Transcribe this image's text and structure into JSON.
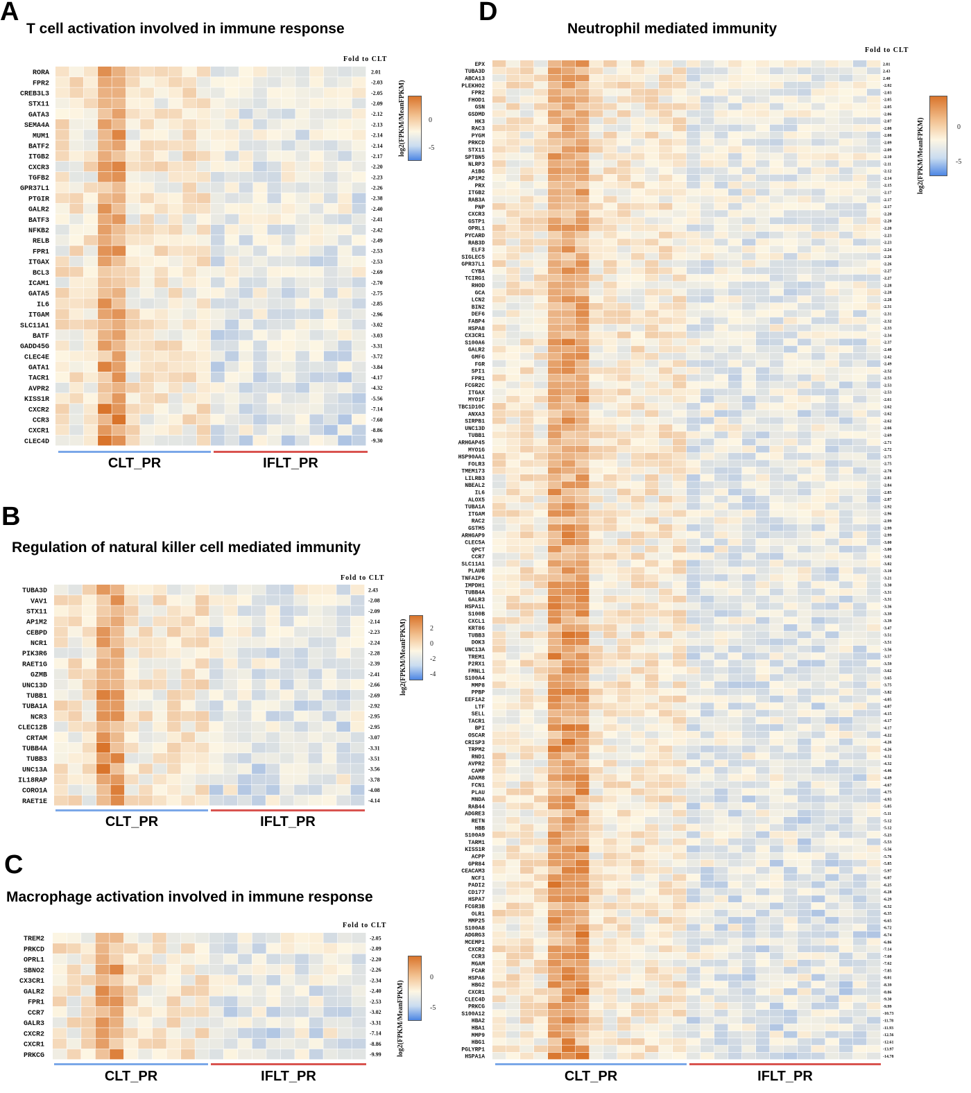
{
  "colors": {
    "high": "#d9742b",
    "mid": "#fdf6e3",
    "low": "#4d86e4",
    "clt_line": "#7aa7e8",
    "iflt_line": "#d9534f"
  },
  "fold_header": "Fold to CLT",
  "legend_title": "log2(FPKM/MeanFPKM)",
  "group_labels": [
    "CLT_PR",
    "IFLT_PR"
  ],
  "chart_data": [
    {
      "type": "heatmap",
      "panel": "A",
      "title": "T cell activation involved in immune response",
      "columns_per_group": [
        11,
        11
      ],
      "rows": [
        "RORA",
        "FPR2",
        "CREB3L3",
        "STX11",
        "GATA3",
        "SEMA4A",
        "MUM1",
        "BATF2",
        "ITGB2",
        "CXCR3",
        "TGFB2",
        "GPR37L1",
        "PTGIR",
        "GALR2",
        "BATF3",
        "NFKB2",
        "RELB",
        "FPR1",
        "ITGAX",
        "BCL3",
        "ICAM1",
        "GATA5",
        "IL6",
        "ITGAM",
        "SLC11A1",
        "BATF",
        "GADD45G",
        "CLEC4E",
        "GATA1",
        "TACR1",
        "AVPR2",
        "KISS1R",
        "CXCR2",
        "CCR3",
        "CXCR1",
        "CLEC4D"
      ],
      "fold": [
        "2.01",
        "-2.03",
        "-2.05",
        "-2.09",
        "-2.12",
        "-2.13",
        "-2.14",
        "-2.14",
        "-2.17",
        "-2.20",
        "-2.23",
        "-2.26",
        "-2.38",
        "-2.40",
        "-2.41",
        "-2.42",
        "-2.49",
        "-2.53",
        "-2.53",
        "-2.69",
        "-2.70",
        "-2.75",
        "-2.85",
        "-2.96",
        "-3.02",
        "-3.03",
        "-3.31",
        "-3.72",
        "-3.84",
        "-4.17",
        "-4.32",
        "-5.56",
        "-7.14",
        "-7.60",
        "-8.86",
        "-9.30"
      ],
      "legend_ticks": [
        "0",
        "-5"
      ]
    },
    {
      "type": "heatmap",
      "panel": "B",
      "title": "Regulation of natural killer cell mediated immunity",
      "columns_per_group": [
        11,
        11
      ],
      "rows": [
        "TUBA3D",
        "VAV1",
        "STX11",
        "AP1M2",
        "CEBPD",
        "NCR1",
        "PIK3R6",
        "RAET1G",
        "GZMB",
        "UNC13D",
        "TUBB1",
        "TUBA1A",
        "NCR3",
        "CLEC12B",
        "CRTAM",
        "TUBB4A",
        "TUBB3",
        "UNC13A",
        "IL18RAP",
        "CORO1A",
        "RAET1E"
      ],
      "fold": [
        "2.43",
        "-2.08",
        "-2.09",
        "-2.14",
        "-2.23",
        "-2.24",
        "-2.28",
        "-2.39",
        "-2.41",
        "-2.66",
        "-2.69",
        "-2.92",
        "-2.95",
        "-2.95",
        "-3.07",
        "-3.31",
        "-3.51",
        "-3.56",
        "-3.78",
        "-4.08",
        "-4.14"
      ],
      "legend_ticks": [
        "2",
        "0",
        "-2",
        "-4"
      ]
    },
    {
      "type": "heatmap",
      "panel": "C",
      "title": "Macrophage activation involved in immune response",
      "columns_per_group": [
        11,
        11
      ],
      "rows": [
        "TREM2",
        "PRKCD",
        "OPRL1",
        "SBNO2",
        "CX3CR1",
        "GALR2",
        "FPR1",
        "CCR7",
        "GALR3",
        "CXCR2",
        "CXCR1",
        "PRKCG"
      ],
      "fold": [
        "-2.05",
        "-2.09",
        "-2.20",
        "-2.26",
        "-2.34",
        "-2.40",
        "-2.53",
        "-3.02",
        "-3.31",
        "-7.14",
        "-8.86",
        "-9.99"
      ],
      "legend_ticks": [
        "0",
        "-5"
      ]
    },
    {
      "type": "heatmap",
      "panel": "D",
      "title": "Neutrophil mediated immunity",
      "columns_per_group": [
        14,
        14
      ],
      "rows": [
        "EPX",
        "TUBA3D",
        "ABCA13",
        "PLEKHO2",
        "FPR2",
        "FHOD1",
        "GSN",
        "GSDMD",
        "HK3",
        "RAC3",
        "PYGM",
        "PRKCD",
        "STX11",
        "SPTBN5",
        "NLRP3",
        "A1BG",
        "AP1M2",
        "PRX",
        "ITGB2",
        "RAB3A",
        "PNP",
        "CXCR3",
        "GSTP1",
        "OPRL1",
        "PYCARD",
        "RAB3D",
        "ELF3",
        "SIGLEC5",
        "GPR37L1",
        "CYBA",
        "TCIRG1",
        "RHOD",
        "GCA",
        "LCN2",
        "BIN2",
        "DEF6",
        "FABP4",
        "HSPA8",
        "CX3CR1",
        "S100A6",
        "GALR2",
        "GMFG",
        "FGR",
        "SPI1",
        "FPR1",
        "FCGR2C",
        "ITGAX",
        "MYO1F",
        "TBC1D10C",
        "ANXA3",
        "SIRPB1",
        "UNC13D",
        "TUBB1",
        "ARHGAP45",
        "MYO1G",
        "HSP90AA1",
        "FOLR3",
        "TMEM173",
        "LILRB3",
        "NBEAL2",
        "IL6",
        "ALOX5",
        "TUBA1A",
        "ITGAM",
        "RAC2",
        "GSTM5",
        "ARHGAP9",
        "CLEC5A",
        "QPCT",
        "CCR7",
        "SLC11A1",
        "PLAUR",
        "TNFAIP6",
        "IMPDH1",
        "TUBB4A",
        "GALR3",
        "HSPA1L",
        "S100B",
        "CXCL1",
        "KRT86",
        "TUBB3",
        "DOK3",
        "UNC13A",
        "TREM1",
        "P2RX1",
        "FMNL1",
        "S100A4",
        "MMP8",
        "PPBP",
        "EEF1A2",
        "LTF",
        "SELL",
        "TACR1",
        "BPI",
        "OSCAR",
        "CRISP3",
        "TRPM2",
        "RND1",
        "AVPR2",
        "CAMP",
        "ADAM8",
        "FCN1",
        "PLAU",
        "MNDA",
        "RAB44",
        "ADGRE3",
        "RETN",
        "HBB",
        "S100A9",
        "TARM1",
        "KISS1R",
        "ACPP",
        "GPR84",
        "CEACAM3",
        "NCF1",
        "PADI2",
        "CD177",
        "HSPA7",
        "FCGR3B",
        "OLR1",
        "MMP25",
        "S100A8",
        "ADGRG3",
        "MCEMP1",
        "CXCR2",
        "CCR3",
        "MGAM",
        "FCAR",
        "HSPA6",
        "HBG2",
        "CXCR1",
        "CLEC4D",
        "PRKCG",
        "S100A12",
        "HBA2",
        "HBA1",
        "MMP9",
        "HBG1",
        "PGLYRP1",
        "HSPA1A"
      ],
      "fold": [
        "2.81",
        "2.43",
        "2.40",
        "-2.02",
        "-2.03",
        "-2.05",
        "-2.05",
        "-2.06",
        "-2.07",
        "-2.08",
        "-2.08",
        "-2.09",
        "-2.09",
        "-2.10",
        "-2.11",
        "-2.12",
        "-2.14",
        "-2.15",
        "-2.17",
        "-2.17",
        "-2.17",
        "-2.20",
        "-2.20",
        "-2.20",
        "-2.23",
        "-2.23",
        "-2.24",
        "-2.26",
        "-2.26",
        "-2.27",
        "-2.27",
        "-2.28",
        "-2.28",
        "-2.28",
        "-2.31",
        "-2.31",
        "-2.32",
        "-2.33",
        "-2.34",
        "-2.37",
        "-2.40",
        "-2.42",
        "-2.49",
        "-2.52",
        "-2.53",
        "-2.53",
        "-2.53",
        "-2.61",
        "-2.62",
        "-2.62",
        "-2.62",
        "-2.66",
        "-2.69",
        "-2.71",
        "-2.72",
        "-2.75",
        "-2.75",
        "-2.78",
        "-2.81",
        "-2.84",
        "-2.85",
        "-2.87",
        "-2.92",
        "-2.96",
        "-2.99",
        "-2.99",
        "-2.99",
        "-3.00",
        "-3.00",
        "-3.02",
        "-3.02",
        "-3.10",
        "-3.21",
        "-3.30",
        "-3.31",
        "-3.31",
        "-3.36",
        "-3.39",
        "-3.39",
        "-3.47",
        "-3.51",
        "-3.51",
        "-3.56",
        "-3.57",
        "-3.59",
        "-3.62",
        "-3.65",
        "-3.75",
        "-3.82",
        "-4.05",
        "-4.07",
        "-4.15",
        "-4.17",
        "-4.17",
        "-4.22",
        "-4.26",
        "-4.26",
        "-4.32",
        "-4.32",
        "-4.46",
        "-4.49",
        "-4.67",
        "-4.75",
        "-4.93",
        "-5.05",
        "-5.11",
        "-5.12",
        "-5.12",
        "-5.23",
        "-5.53",
        "-5.56",
        "-5.76",
        "-5.85",
        "-5.97",
        "-6.07",
        "-6.25",
        "-6.28",
        "-6.29",
        "-6.32",
        "-6.35",
        "-6.65",
        "-6.72",
        "-6.74",
        "-6.86",
        "-7.14",
        "-7.60",
        "-7.62",
        "-7.85",
        "-8.01",
        "-8.39",
        "-8.86",
        "-9.30",
        "-9.99",
        "-10.73",
        "-11.78",
        "-11.93",
        "-12.56",
        "-12.61",
        "-13.97",
        "-14.78"
      ],
      "legend_ticks": [
        "0",
        "-5"
      ]
    }
  ]
}
